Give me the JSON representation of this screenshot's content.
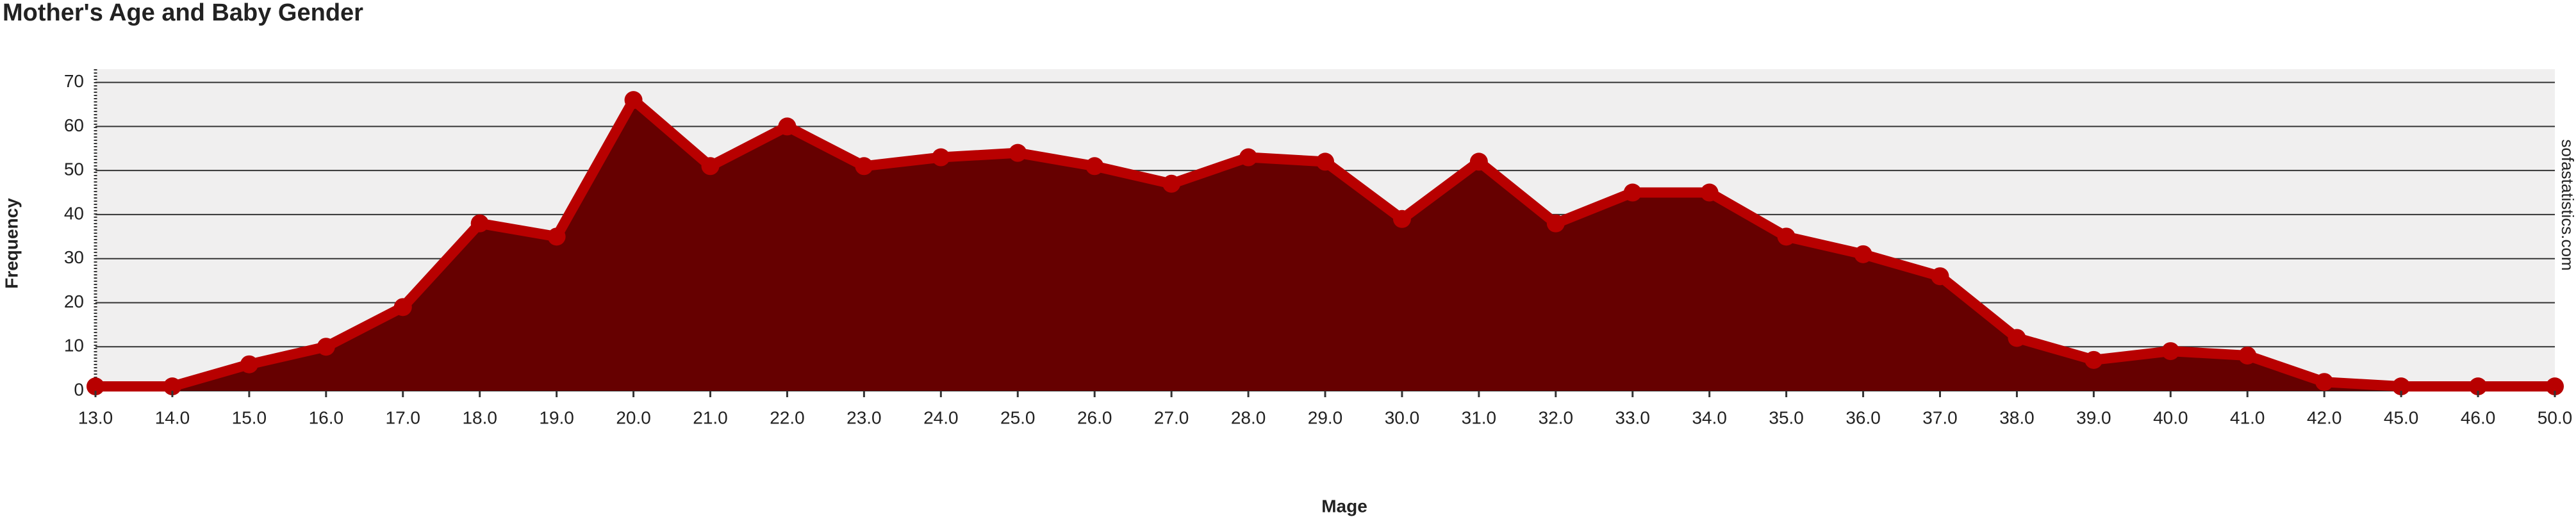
{
  "chart_data": {
    "type": "area",
    "title": "Mother's Age and Baby Gender",
    "xlabel": "Mage",
    "ylabel": "Frequency",
    "watermark": "sofastatistics.com",
    "categories": [
      "13.0",
      "14.0",
      "15.0",
      "16.0",
      "17.0",
      "18.0",
      "19.0",
      "20.0",
      "21.0",
      "22.0",
      "23.0",
      "24.0",
      "25.0",
      "26.0",
      "27.0",
      "28.0",
      "29.0",
      "30.0",
      "31.0",
      "32.0",
      "33.0",
      "34.0",
      "35.0",
      "36.0",
      "37.0",
      "38.0",
      "39.0",
      "40.0",
      "41.0",
      "42.0",
      "45.0",
      "46.0",
      "50.0"
    ],
    "values": [
      1,
      1,
      6,
      10,
      19,
      38,
      35,
      66,
      51,
      60,
      51,
      53,
      54,
      51,
      47,
      53,
      52,
      39,
      52,
      38,
      45,
      45,
      35,
      31,
      26,
      12,
      7,
      9,
      8,
      2,
      1,
      1,
      1
    ],
    "color": "#660000",
    "line_color": "#b80000",
    "ylim": [
      0,
      73
    ],
    "yticks": [
      0,
      10,
      20,
      30,
      40,
      50,
      60,
      70
    ],
    "grid": true
  }
}
